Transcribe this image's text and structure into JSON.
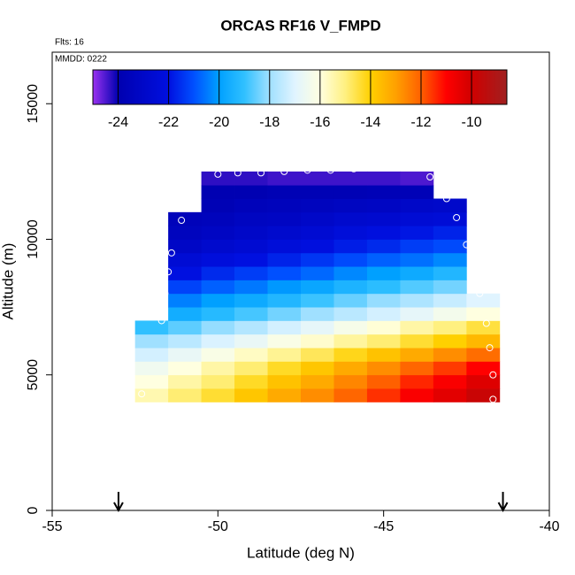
{
  "chart_data": {
    "type": "heatmap",
    "title": "ORCAS RF16 V_FMPD",
    "flights_label": "Flts: 16",
    "date_label": "MMDD: 0222",
    "xlabel": "Latitude (deg N)",
    "ylabel": "Altitude (m)",
    "xlim": [
      -55,
      -40
    ],
    "xticks": [
      -55,
      -50,
      -45,
      -40
    ],
    "ylim": [
      0,
      16900
    ],
    "yticks": [
      0,
      5000,
      10000,
      15000
    ],
    "x_edges": [
      -52.5,
      -51.5,
      -50.5,
      -49.5,
      -48.5,
      -47.5,
      -46.5,
      -45.5,
      -44.5,
      -43.5,
      -42.5,
      -41.5
    ],
    "y_edges": [
      4000,
      4500,
      5000,
      5500,
      6000,
      6500,
      7000,
      7500,
      8000,
      8500,
      9000,
      9500,
      10000,
      10500,
      11000,
      11500,
      12000,
      12500
    ],
    "z": [
      [
        -15.5,
        -14.9,
        -14.4,
        -13.8,
        -13.2,
        -12.7,
        -12.1,
        -11.5,
        -10.9,
        -10.4,
        -9.8
      ],
      [
        -16,
        -15.4,
        -14.9,
        -14.3,
        -13.7,
        -13.2,
        -12.6,
        -12,
        -11.4,
        -10.9,
        -10.3
      ],
      [
        -16.5,
        -16,
        -15.4,
        -14.9,
        -14.3,
        -13.8,
        -13.2,
        -12.7,
        -12.1,
        -11.6,
        -11
      ],
      [
        -17.2,
        -16.7,
        -16.2,
        -15.7,
        -15.2,
        -14.7,
        -14.2,
        -13.7,
        -13.2,
        -12.7,
        -12.2
      ],
      [
        -18,
        -17.6,
        -17.1,
        -16.7,
        -16.2,
        -15.8,
        -15.3,
        -14.9,
        -14.4,
        -14,
        -13.5
      ],
      [
        -19,
        -18.6,
        -18.1,
        -17.7,
        -17.2,
        -16.8,
        -16.3,
        -15.9,
        -15.4,
        -15,
        -14.5
      ],
      [
        null,
        -19.6,
        -19.2,
        -18.8,
        -18.4,
        -18,
        -17.6,
        -17.2,
        -16.8,
        -16.4,
        -16
      ],
      [
        null,
        -20.4,
        -20,
        -19.7,
        -19.3,
        -18.9,
        -18.5,
        -18.1,
        -17.8,
        -17.4,
        -17
      ],
      [
        null,
        -21.2,
        -20.8,
        -20.5,
        -20.1,
        -19.8,
        -19.4,
        -19.1,
        -18.7,
        -18.4,
        null
      ],
      [
        null,
        -22,
        -21.6,
        -21.3,
        -21,
        -20.7,
        -20.3,
        -20,
        -19.7,
        -19.3,
        null
      ],
      [
        null,
        -22.5,
        -22.2,
        -22,
        -21.7,
        -21.4,
        -21.1,
        -20.8,
        -20.6,
        -20.3,
        null
      ],
      [
        null,
        -23.1,
        -22.8,
        -22.6,
        -22.3,
        -22.1,
        -21.8,
        -21.6,
        -21.3,
        -21.1,
        null
      ],
      [
        null,
        -23.4,
        -23.2,
        -23,
        -22.8,
        -22.6,
        -22.3,
        -22.1,
        -21.9,
        -21.7,
        null
      ],
      [
        null,
        -23.6,
        -23.5,
        -23.3,
        -23.2,
        -23,
        -22.8,
        -22.7,
        -22.5,
        -22.4,
        null
      ],
      [
        null,
        null,
        -23.8,
        -23.6,
        -23.5,
        -23.4,
        -23.3,
        -23.2,
        -23,
        -22.9,
        null
      ],
      [
        null,
        null,
        -23.9,
        -23.9,
        -23.8,
        -23.8,
        -23.8,
        -23.7,
        -23.7,
        null,
        null
      ],
      [
        null,
        null,
        -24.3,
        -24.3,
        -24.4,
        -24.4,
        -24.4,
        -24.4,
        -24.5,
        null,
        null
      ]
    ],
    "colorscale": [
      {
        "value": -25,
        "color": "#9a32f0"
      },
      {
        "value": -24,
        "color": "#0000b0"
      },
      {
        "value": -22,
        "color": "#0010e0"
      },
      {
        "value": -21,
        "color": "#0050ff"
      },
      {
        "value": -20,
        "color": "#00a0ff"
      },
      {
        "value": -19,
        "color": "#30c0ff"
      },
      {
        "value": -18,
        "color": "#a0e0ff"
      },
      {
        "value": -17,
        "color": "#e0f4ff"
      },
      {
        "value": -16,
        "color": "#ffffe0"
      },
      {
        "value": -15,
        "color": "#fff080"
      },
      {
        "value": -14,
        "color": "#ffd000"
      },
      {
        "value": -13,
        "color": "#ffa000"
      },
      {
        "value": -12,
        "color": "#ff6000"
      },
      {
        "value": -11,
        "color": "#ff0000"
      },
      {
        "value": -10,
        "color": "#d00000"
      },
      {
        "value": -8.6,
        "color": "#a02020"
      }
    ],
    "colorbar_lim": [
      -25,
      -8.6
    ],
    "colorbar_ticks": [
      -24,
      -22,
      -20,
      -18,
      -16,
      -14,
      -12,
      -10
    ],
    "track": {
      "color": "#ffffff",
      "x": [
        -52.4,
        -52.3,
        -51.7,
        -51.6,
        -51.5,
        -51.4,
        -51.1,
        -50.7,
        -50,
        -49.4,
        -48.7,
        -48,
        -47.3,
        -46.6,
        -45.9,
        -45.2,
        -44.5,
        -43.6,
        -43.1,
        -42.8,
        -42.5,
        -42.3,
        -42.1,
        -41.9,
        -41.8,
        -41.7,
        -41.7
      ],
      "y": [
        3800,
        4300,
        7000,
        8000,
        8800,
        9500,
        10700,
        12200,
        12400,
        12450,
        12450,
        12500,
        12550,
        12550,
        12600,
        12650,
        12650,
        12300,
        11500,
        10800,
        9800,
        9100,
        8000,
        6900,
        6000,
        5000,
        4100
      ]
    },
    "arrows_x": [
      -53,
      -41.4
    ]
  }
}
